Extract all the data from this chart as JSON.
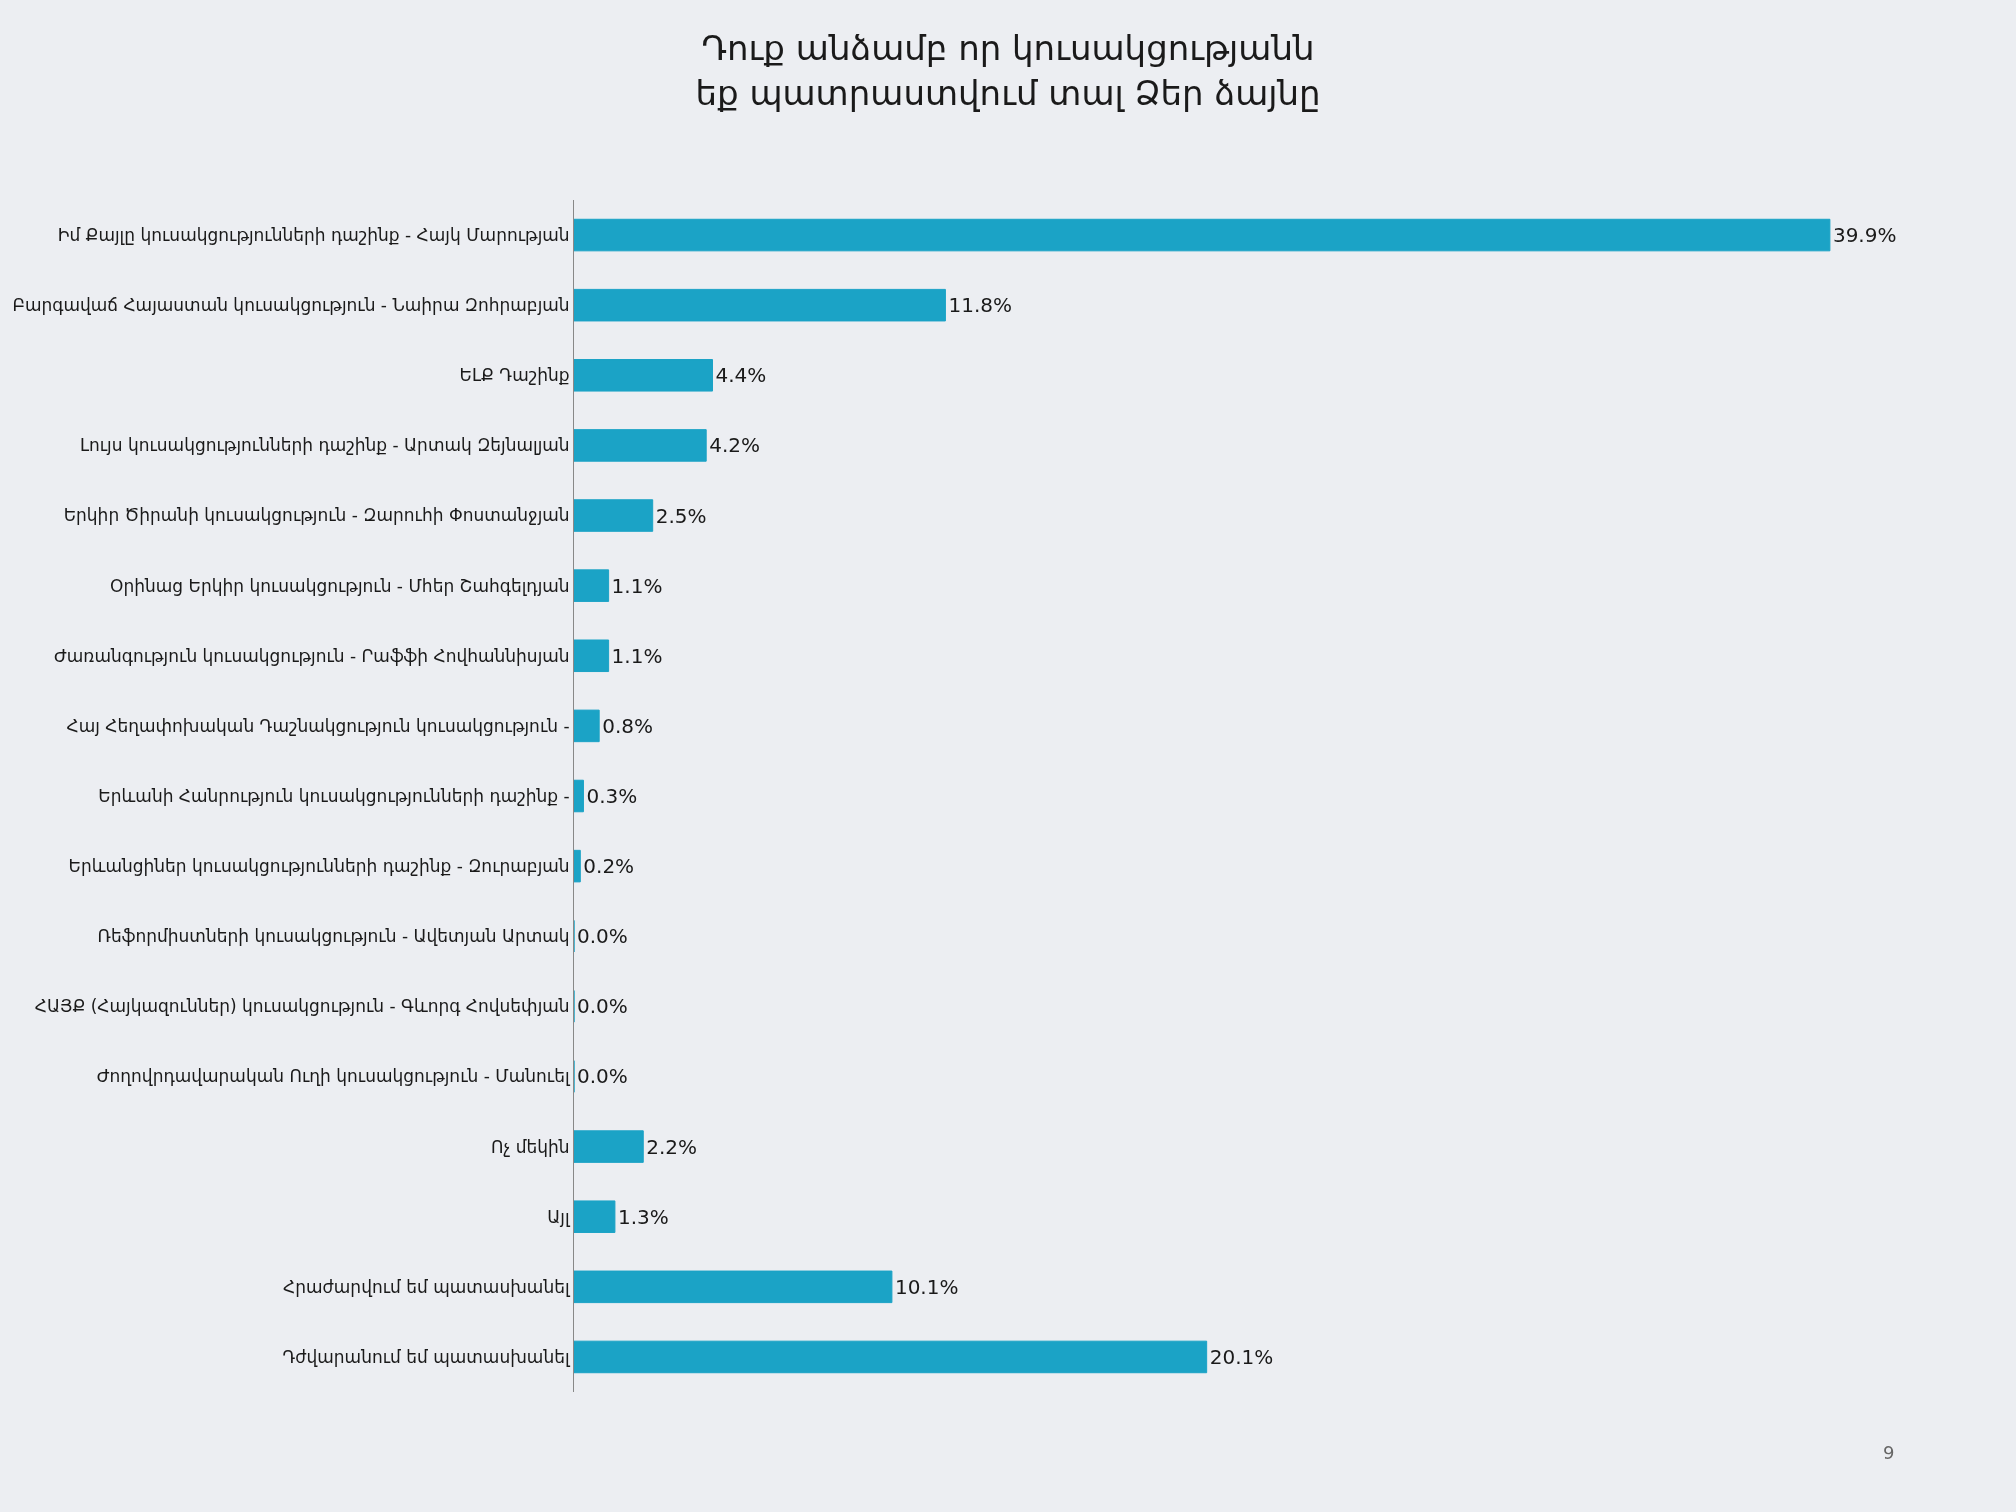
{
  "chart_data": {
    "type": "bar",
    "orientation": "horizontal",
    "title": "Դուք անձամբ որ կուսակցությանն\nեք պատրաստվում տալ Ձեր ձայնը",
    "categories": [
      "Իմ Քայլը կուսակցությունների դաշինք - Հայկ Մարության",
      "Բարգավաճ Հայաստան կուսակցություն - Նաիրա Զոհրաբյան",
      "ԵԼՔ Դաշինք",
      "Լույս կուսակցությունների դաշինք - Արտակ Զեյնալյան",
      "Երկիր Ծիրանի կուսակցություն - Զարուհի Փոստանջյան",
      "Օրինաց Երկիր կուսակցություն - Մհեր Շահգելդյան",
      "Ժառանգություն կուսակցություն - Րաֆֆի Հովհաննիսյան",
      "Հայ Հեղափոխական Դաշնակցություն կուսակցություն -",
      "Երևանի Հանրություն կուսակցությունների դաշինք -",
      "Երևանցիներ կուսակցությունների դաշինք - Զուրաբյան",
      "Ռեֆորմիստների կուսակցություն - Ավետյան Արտակ",
      "ՀԱՅՔ (Հայկազուններ) կուսակցություն - Գևորգ Հովսեփյան",
      "Ժողովրդավարական Ուղի կուսակցություն - Մանուել",
      "Ոչ մեկին",
      "Այլ",
      "Հրաժարվում եմ պատասխանել",
      "Դժվարանում եմ պատասխանել"
    ],
    "values": [
      39.9,
      11.8,
      4.4,
      4.2,
      2.5,
      1.1,
      1.1,
      0.8,
      0.3,
      0.2,
      0.0,
      0.0,
      0.0,
      2.2,
      1.3,
      10.1,
      20.1
    ],
    "value_labels": [
      "39.9%",
      "11.8%",
      "4.4%",
      "4.2%",
      "2.5%",
      "1.1%",
      "1.1%",
      "0.8%",
      "0.3%",
      "0.2%",
      "0.0%",
      "0.0%",
      "0.0%",
      "2.2%",
      "1.3%",
      "10.1%",
      "20.1%"
    ],
    "color": "#1ba3c6",
    "tick_labels": "y",
    "grid": false,
    "legend": false,
    "annotations": [
      "9"
    ]
  }
}
